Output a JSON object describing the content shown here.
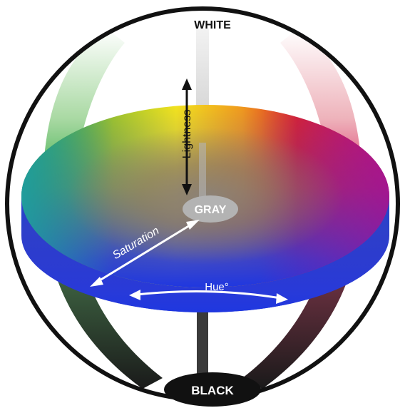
{
  "labels": {
    "white": "WHITE",
    "black": "BLACK",
    "gray": "GRAY",
    "lightness": "Lightness",
    "saturation": "Saturation",
    "hue": "Hue°"
  },
  "colors": {
    "outline": "#111111",
    "upper_axis": "#c9c9c9",
    "lower_axis": "#3a3a3a",
    "gray_badge": "#b3b3b3",
    "black_badge": "#111111",
    "hue_blue": "#1f3fd8",
    "hue_magenta": "#d3106a",
    "hue_red": "#e3201f",
    "hue_yellow": "#f5e51a",
    "hue_green": "#2aaa3a",
    "hue_cyan": "#1f9da7"
  },
  "icons": {
    "lightness_arrow": "double-headed-arrow-icon",
    "saturation_arrow": "double-headed-arrow-icon",
    "hue_arrow": "curved-double-headed-arrow-icon"
  }
}
